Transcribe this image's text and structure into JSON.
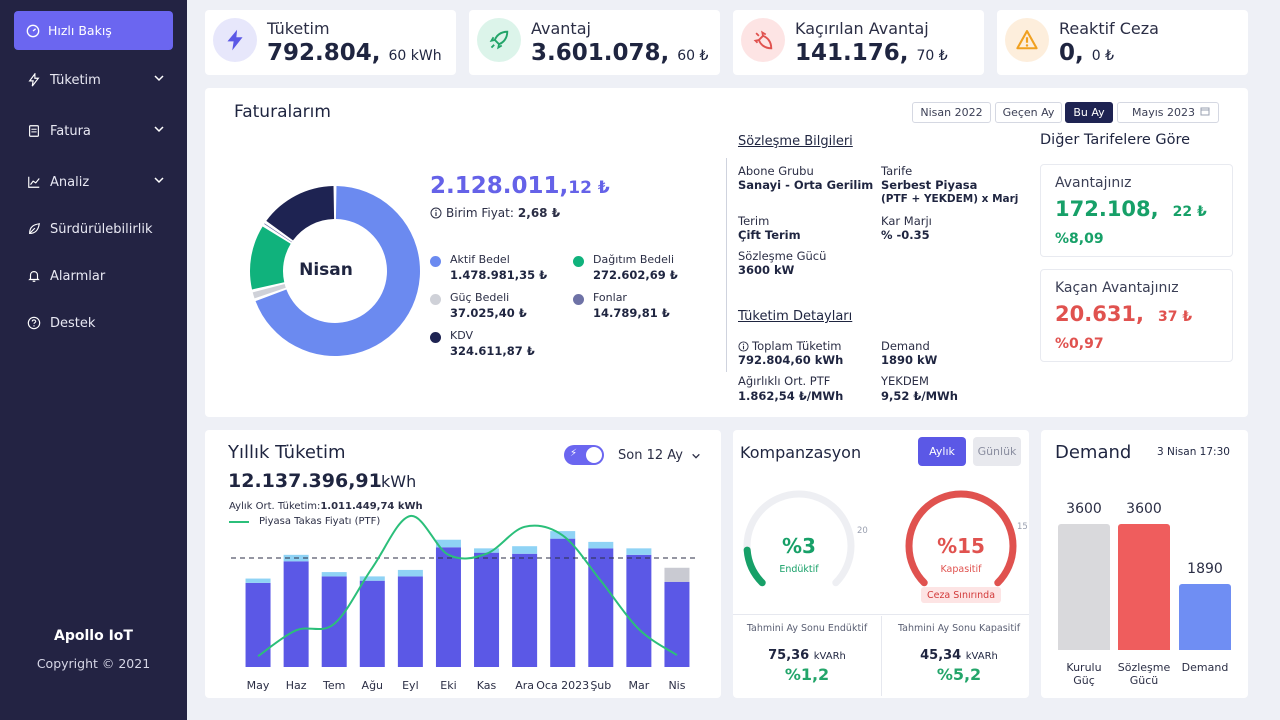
{
  "sidebar": {
    "active": "Hızlı Bakış",
    "items": [
      {
        "label": "Tüketim",
        "icon": "bolt-icon",
        "expandable": true
      },
      {
        "label": "Fatura",
        "icon": "document-icon",
        "expandable": true
      },
      {
        "label": "Analiz",
        "icon": "chart-icon",
        "expandable": true
      },
      {
        "label": "Sürdürülebilirlik",
        "icon": "leaf-icon",
        "expandable": false
      },
      {
        "label": "Alarmlar",
        "icon": "bell-icon",
        "expandable": false
      },
      {
        "label": "Destek",
        "icon": "help-icon",
        "expandable": false
      }
    ],
    "brand": "Apollo IoT",
    "copyright": "Copyright © 2021"
  },
  "kpis": [
    {
      "label": "Tüketim",
      "value": "792.804,",
      "decimal": "60 kWh",
      "icon": "bolt-icon",
      "color": "#5b58e6",
      "bg": "#e7e7fb"
    },
    {
      "label": "Avantaj",
      "value": "3.601.078,",
      "decimal": "60 ₺",
      "icon": "rocket-icon",
      "color": "#23a56a",
      "bg": "#dcf4ea"
    },
    {
      "label": "Kaçırılan Avantaj",
      "value": "141.176,",
      "decimal": "70 ₺",
      "icon": "rocket-down-icon",
      "color": "#e0524f",
      "bg": "#fde4e4"
    },
    {
      "label": "Reaktif Ceza",
      "value": "0,",
      "decimal": "0 ₺",
      "icon": "warning-icon",
      "color": "#f0a020",
      "bg": "#fdeedc"
    }
  ],
  "faturalar": {
    "title": "Faturalarım",
    "filters": [
      {
        "label": "Nisan 2022",
        "active": false
      },
      {
        "label": "Geçen Ay",
        "active": false
      },
      {
        "label": "Bu Ay",
        "active": true
      }
    ],
    "month_picker": "Mayıs 2023",
    "donut_center": "Nisan",
    "total_int": "2.128.011,",
    "total_dec": "12 ₺",
    "unit_price_label": "Birim Fiyat:",
    "unit_price_value": "2,68 ₺",
    "breakdown": [
      {
        "name": "Aktif Bedel",
        "amount": "1.478.981,35 ₺",
        "value": 1478981.35,
        "color": "#6b8af0"
      },
      {
        "name": "Dağıtım Bedeli",
        "amount": "272.602,69 ₺",
        "value": 272602.69,
        "color": "#10b27c"
      },
      {
        "name": "Güç Bedeli",
        "amount": "37.025,40 ₺",
        "value": 37025.4,
        "color": "#cfd1d8"
      },
      {
        "name": "Fonlar",
        "amount": "14.789,81 ₺",
        "value": 14789.81,
        "color": "#6e72a6"
      },
      {
        "name": "KDV",
        "amount": "324.611,87 ₺",
        "value": 324611.87,
        "color": "#1e2352"
      }
    ]
  },
  "contract": {
    "title": "Sözleşme Bilgileri",
    "abone_label": "Abone Grubu",
    "abone_value": "Sanayi - Orta Gerilim",
    "tarife_label": "Tarife",
    "tarife_value1": "Serbest Piyasa",
    "tarife_value2": "(PTF + YEKDEM) x Marj",
    "terim_label": "Terim",
    "terim_value": "Çift Terim",
    "kar_label": "Kar Marjı",
    "kar_value": "% -0.35",
    "guc_label": "Sözleşme Gücü",
    "guc_value": "3600 kW"
  },
  "consumption_details": {
    "title": "Tüketim Detayları",
    "toplam_label": "Toplam Tüketim",
    "toplam_value": "792.804,60 kWh",
    "demand_label": "Demand",
    "demand_value": "1890 kW",
    "ptf_label": "Ağırlıklı Ort. PTF",
    "ptf_value": "1.862,54 ₺/MWh",
    "yekdem_label": "YEKDEM",
    "yekdem_value": "9,52 ₺/MWh"
  },
  "tariffs": {
    "title": "Diğer Tarifelere Göre",
    "advantage": {
      "label": "Avantajınız",
      "int": "172.108,",
      "dec": "22 ₺",
      "pct": "%8,09",
      "color": "#17a068"
    },
    "missed": {
      "label": "Kaçan Avantajınız",
      "int": "20.631,",
      "dec": "37 ₺",
      "pct": "%0,97",
      "color": "#e0524f"
    }
  },
  "yearly": {
    "title": "Yıllık Tüketim",
    "total": "12.137.396,91",
    "unit": "kWh",
    "avg_label": "Aylık Ort. Tüketim:",
    "avg_value": "1.011.449,74 kWh",
    "ptf_legend": "Piyasa Takas Fiyatı (PTF)",
    "period": "Son 12 Ay"
  },
  "chart_data": {
    "type": "bar",
    "categories": [
      "May",
      "Haz",
      "Tem",
      "Ağu",
      "Eyl",
      "Eki",
      "Kas",
      "Ara",
      "Oca 2023",
      "Şub",
      "Mar",
      "Nis"
    ],
    "series": [
      {
        "values": [
          0.78,
          0.98,
          0.84,
          0.8,
          0.84,
          1.11,
          1.06,
          1.05,
          1.19,
          1.1,
          1.04,
          0.79
        ]
      },
      {
        "values": [
          0.04,
          0.06,
          0.04,
          0.04,
          0.06,
          0.07,
          0.04,
          0.07,
          0.07,
          0.06,
          0.06,
          0.13
        ]
      }
    ],
    "line": [
      0.1,
      0.34,
      0.4,
      0.92,
      1.4,
      1.04,
      1.05,
      1.3,
      1.22,
      0.8,
      0.35,
      0.11
    ],
    "average": 1.011,
    "ylim": [
      0,
      1.4
    ]
  },
  "kompanzasyon": {
    "title": "Kompanzasyon",
    "tab_monthly": "Aylık",
    "tab_daily": "Günlük",
    "inductive": {
      "value": "%3",
      "label": "Endüktif",
      "pct": 0.15,
      "max_label": "20",
      "color": "#17a068"
    },
    "capacitive": {
      "value": "%15",
      "label": "Kapasitif",
      "pct": 1.0,
      "max_label": "15",
      "color": "#e0524f"
    },
    "limit_label": "Ceza Sınırında",
    "est_ind_label": "Tahmini Ay Sonu Endüktif",
    "est_ind_value": "75,36",
    "est_ind_unit": "kVARh",
    "est_ind_pct": "%1,2",
    "est_cap_label": "Tahmini Ay Sonu Kapasitif",
    "est_cap_value": "45,34",
    "est_cap_unit": "kVARh",
    "est_cap_pct": "%5,2"
  },
  "demand": {
    "title": "Demand",
    "date": "3 Nisan 17:30",
    "bars": [
      {
        "value": 3600,
        "label": "3600",
        "name1": "Kurulu",
        "name2": "Güç",
        "color": "#d9d9dc"
      },
      {
        "value": 3600,
        "label": "3600",
        "name1": "Sözleşme",
        "name2": "Gücü",
        "color": "#ef5d5d"
      },
      {
        "value": 1890,
        "label": "1890",
        "name1": "Demand",
        "name2": "",
        "color": "#6f8ef3"
      }
    ],
    "max": 3600
  }
}
